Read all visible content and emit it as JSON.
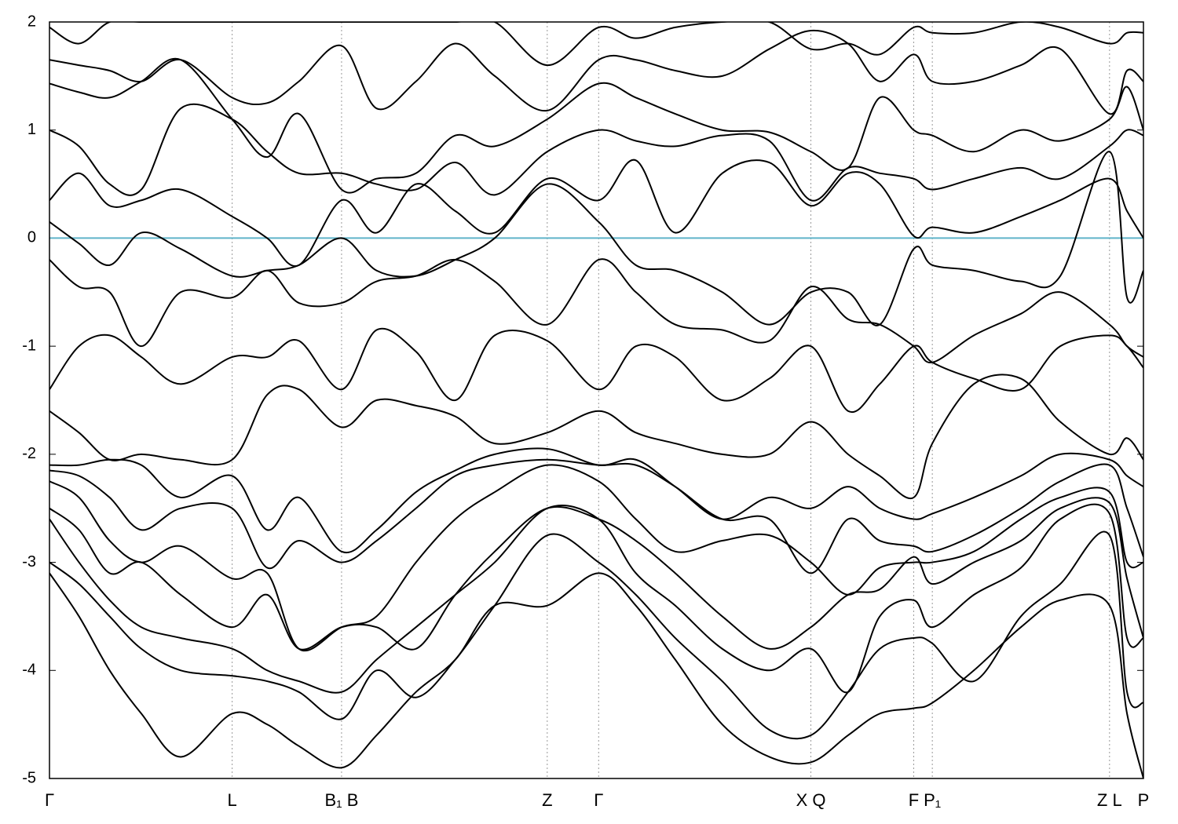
{
  "chart_data": {
    "type": "line",
    "color": "#000000",
    "fermi_level": 0,
    "fermi_color": "#5fb4c9",
    "grid": true,
    "ylim": [
      -5,
      2
    ],
    "yticks": [
      -5,
      -4,
      -3,
      -2,
      -1,
      0,
      1,
      2
    ],
    "xlim": [
      0,
      1
    ],
    "xticks": [
      {
        "value": 0,
        "label": "Γ"
      },
      {
        "value": 0.167,
        "label": "L"
      },
      {
        "value": 0.267,
        "label": "B₁ B"
      },
      {
        "value": 0.455,
        "label": "Z"
      },
      {
        "value": 0.502,
        "label": "Γ"
      },
      {
        "value": 0.696,
        "label": "X Q"
      },
      {
        "value": 0.79,
        "label": "F"
      },
      {
        "value": 0.807,
        "label": "P₁"
      },
      {
        "value": 0.969,
        "label": "Z L"
      },
      {
        "value": 1,
        "label": "P"
      }
    ],
    "x": [
      0,
      0.027,
      0.055,
      0.084,
      0.12,
      0.167,
      0.199,
      0.228,
      0.267,
      0.299,
      0.335,
      0.371,
      0.407,
      0.455,
      0.502,
      0.536,
      0.572,
      0.615,
      0.658,
      0.696,
      0.73,
      0.759,
      0.79,
      0.807,
      0.845,
      0.888,
      0.924,
      0.969,
      0.985,
      1
    ],
    "series": [
      {
        "values": [
          1.95,
          1.8,
          2.0,
          2.0,
          2.0,
          2.0,
          2.0,
          2.0,
          2.0,
          2.0,
          2.0,
          2.0,
          2.0,
          1.6,
          1.95,
          1.85,
          1.95,
          2.0,
          2.0,
          1.75,
          1.8,
          1.7,
          1.95,
          1.9,
          1.9,
          2.0,
          1.95,
          1.8,
          1.9,
          1.9
        ]
      },
      {
        "values": [
          1.65,
          1.6,
          1.55,
          1.45,
          1.65,
          1.3,
          1.25,
          1.45,
          1.78,
          1.2,
          1.45,
          1.8,
          1.5,
          1.18,
          1.65,
          1.65,
          1.55,
          1.5,
          1.75,
          1.92,
          1.8,
          1.45,
          1.7,
          1.45,
          1.45,
          1.6,
          1.75,
          1.15,
          1.55,
          1.45
        ]
      },
      {
        "values": [
          1.43,
          1.35,
          1.3,
          1.45,
          1.65,
          1.1,
          0.75,
          1.15,
          0.45,
          0.55,
          0.6,
          0.95,
          0.85,
          1.1,
          1.43,
          1.3,
          1.15,
          1.0,
          0.98,
          0.8,
          0.65,
          1.3,
          1.0,
          0.95,
          0.8,
          1.0,
          0.9,
          1.1,
          1.4,
          1.0
        ]
      },
      {
        "values": [
          1.0,
          0.85,
          0.5,
          0.45,
          1.2,
          1.1,
          0.8,
          0.6,
          0.6,
          0.5,
          0.45,
          0.7,
          0.4,
          0.8,
          1.0,
          0.9,
          0.85,
          0.95,
          0.9,
          0.35,
          0.65,
          0.6,
          0.55,
          0.45,
          0.55,
          0.65,
          0.55,
          0.85,
          1.0,
          0.95
        ]
      },
      {
        "values": [
          0.35,
          0.6,
          0.3,
          0.35,
          0.45,
          0.2,
          0.0,
          -0.25,
          0.35,
          0.05,
          0.5,
          0.25,
          0.05,
          0.55,
          0.35,
          0.72,
          0.05,
          0.6,
          0.7,
          0.3,
          0.6,
          0.5,
          0.02,
          0.1,
          0.05,
          0.2,
          0.35,
          0.55,
          0.25,
          0.0
        ]
      },
      {
        "values": [
          0.15,
          -0.05,
          -0.25,
          0.05,
          -0.1,
          -0.35,
          -0.3,
          -0.25,
          0.0,
          -0.3,
          -0.35,
          -0.2,
          0.0,
          0.5,
          0.15,
          -0.25,
          -0.3,
          -0.5,
          -0.8,
          -0.5,
          -0.5,
          -0.8,
          -0.1,
          -0.25,
          -0.3,
          -0.4,
          -0.35,
          0.8,
          -0.55,
          -0.3
        ]
      },
      {
        "values": [
          -0.2,
          -0.45,
          -0.5,
          -1.0,
          -0.5,
          -0.55,
          -0.3,
          -0.6,
          -0.6,
          -0.4,
          -0.35,
          -0.2,
          -0.4,
          -0.8,
          -0.2,
          -0.5,
          -0.8,
          -0.85,
          -0.95,
          -0.45,
          -0.75,
          -0.8,
          -1.0,
          -1.15,
          -0.9,
          -0.7,
          -0.5,
          -0.8,
          -1.0,
          -1.1
        ]
      },
      {
        "values": [
          -1.4,
          -1.0,
          -0.9,
          -1.1,
          -1.35,
          -1.1,
          -1.1,
          -0.95,
          -1.4,
          -0.85,
          -1.05,
          -1.5,
          -0.9,
          -0.95,
          -1.4,
          -1.0,
          -1.1,
          -1.5,
          -1.3,
          -1.0,
          -1.6,
          -1.35,
          -1.0,
          -1.15,
          -1.3,
          -1.4,
          -1.0,
          -0.9,
          -1.0,
          -1.2
        ]
      },
      {
        "values": [
          -1.6,
          -1.8,
          -2.05,
          -2.0,
          -2.05,
          -2.05,
          -1.45,
          -1.4,
          -1.75,
          -1.5,
          -1.55,
          -1.65,
          -1.9,
          -1.8,
          -1.6,
          -1.8,
          -1.9,
          -2.0,
          -2.0,
          -1.7,
          -2.0,
          -2.2,
          -2.4,
          -1.9,
          -1.35,
          -1.3,
          -1.7,
          -2.0,
          -1.85,
          -2.05
        ]
      },
      {
        "values": [
          -2.1,
          -2.1,
          -2.05,
          -2.1,
          -2.4,
          -2.2,
          -2.7,
          -2.4,
          -2.9,
          -2.7,
          -2.35,
          -2.15,
          -2.0,
          -1.95,
          -2.1,
          -2.05,
          -2.3,
          -2.6,
          -2.4,
          -2.5,
          -2.3,
          -2.5,
          -2.6,
          -2.55,
          -2.4,
          -2.2,
          -2.0,
          -2.05,
          -2.2,
          -2.3
        ]
      },
      {
        "values": [
          -2.15,
          -2.2,
          -2.4,
          -2.7,
          -2.5,
          -2.5,
          -3.05,
          -2.8,
          -3.0,
          -2.8,
          -2.5,
          -2.2,
          -2.1,
          -2.05,
          -2.1,
          -2.1,
          -2.3,
          -2.6,
          -2.6,
          -3.1,
          -2.6,
          -2.8,
          -2.85,
          -2.9,
          -2.75,
          -2.5,
          -2.25,
          -2.1,
          -2.5,
          -2.95
        ]
      },
      {
        "values": [
          -2.25,
          -2.4,
          -2.8,
          -3.0,
          -2.85,
          -3.15,
          -3.1,
          -3.8,
          -3.6,
          -3.5,
          -3.0,
          -2.6,
          -2.35,
          -2.1,
          -2.25,
          -2.6,
          -2.9,
          -2.8,
          -2.75,
          -3.0,
          -3.3,
          -3.05,
          -3.0,
          -3.0,
          -2.9,
          -2.6,
          -2.4,
          -2.35,
          -3.0,
          -3.0
        ]
      },
      {
        "values": [
          -2.5,
          -2.7,
          -3.1,
          -3.0,
          -3.3,
          -3.6,
          -3.3,
          -3.8,
          -3.6,
          -3.6,
          -3.8,
          -3.3,
          -2.9,
          -2.5,
          -2.6,
          -2.8,
          -3.1,
          -3.5,
          -3.8,
          -3.6,
          -3.3,
          -3.25,
          -2.95,
          -3.2,
          -3.0,
          -2.8,
          -2.5,
          -2.45,
          -3.15,
          -3.7
        ]
      },
      {
        "values": [
          -2.6,
          -3.0,
          -3.35,
          -3.6,
          -3.7,
          -3.8,
          -4.0,
          -4.1,
          -4.2,
          -3.9,
          -3.6,
          -3.3,
          -3.0,
          -2.5,
          -2.6,
          -3.1,
          -3.4,
          -3.8,
          -4.0,
          -3.8,
          -4.2,
          -3.5,
          -3.35,
          -3.6,
          -3.3,
          -3.05,
          -2.6,
          -2.55,
          -3.7,
          -3.7
        ]
      },
      {
        "values": [
          -3.0,
          -3.2,
          -3.5,
          -3.8,
          -4.0,
          -4.05,
          -4.1,
          -4.2,
          -4.45,
          -4.0,
          -4.25,
          -3.9,
          -3.4,
          -2.75,
          -3.0,
          -3.3,
          -3.7,
          -4.1,
          -4.55,
          -4.6,
          -4.2,
          -3.8,
          -3.7,
          -3.75,
          -4.1,
          -3.5,
          -3.2,
          -2.75,
          -4.2,
          -4.3
        ]
      },
      {
        "values": [
          -3.1,
          -3.5,
          -4.0,
          -4.4,
          -4.8,
          -4.4,
          -4.5,
          -4.7,
          -4.9,
          -4.6,
          -4.2,
          -3.9,
          -3.4,
          -3.4,
          -3.1,
          -3.4,
          -3.9,
          -4.5,
          -4.8,
          -4.85,
          -4.6,
          -4.4,
          -4.35,
          -4.3,
          -4.0,
          -3.6,
          -3.35,
          -3.4,
          -4.4,
          -5.0
        ]
      }
    ]
  }
}
